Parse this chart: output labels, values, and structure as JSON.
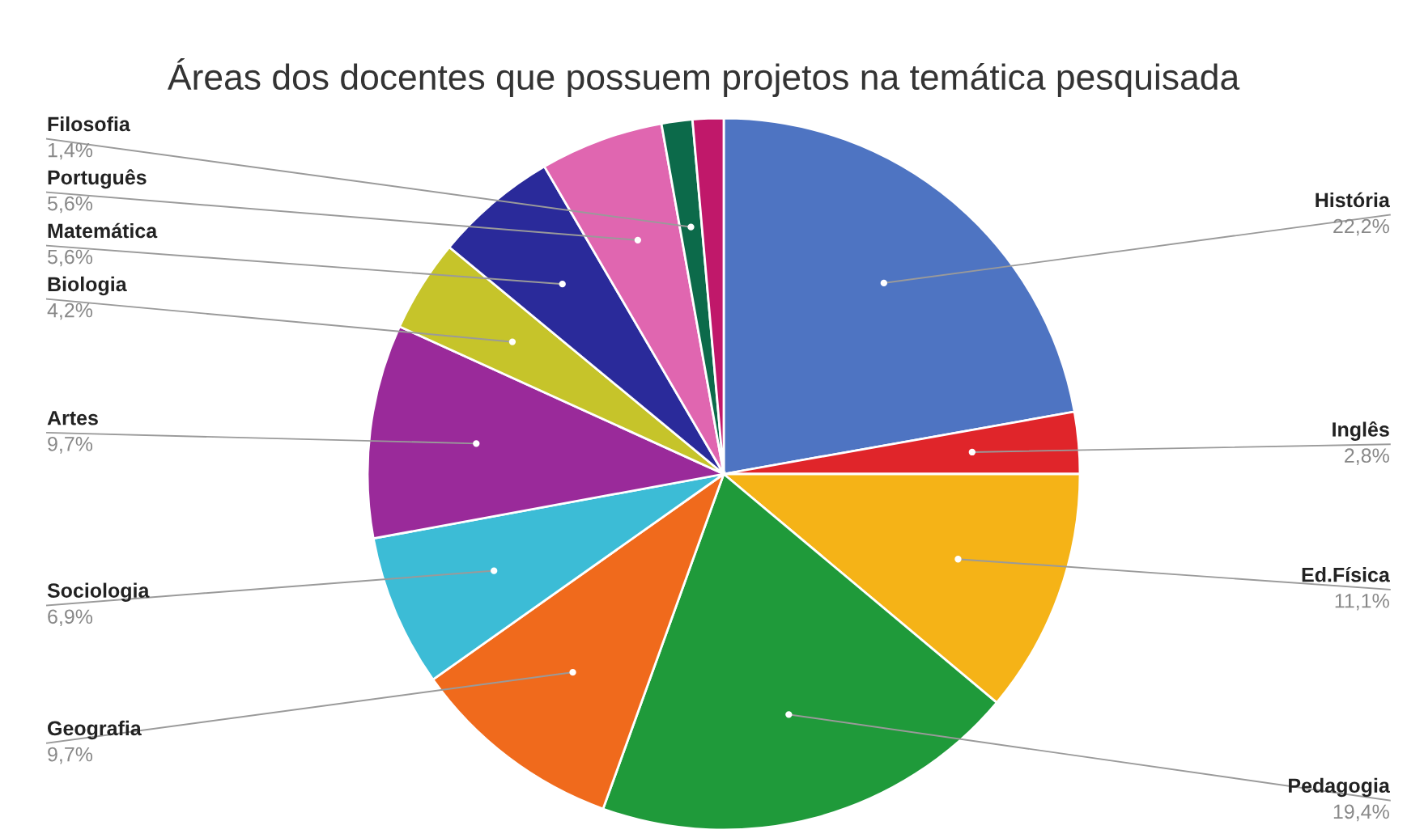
{
  "chart_data": {
    "type": "pie",
    "title": "Áreas dos docentes que possuem projetos na temática pesquisada",
    "categories": [
      "História",
      "Inglês",
      "Ed.Física",
      "Pedagogia",
      "Geografia",
      "Sociologia",
      "Artes",
      "Biologia",
      "Matemática",
      "Português",
      "Filosofia",
      null
    ],
    "values": [
      22.2,
      2.8,
      11.1,
      19.4,
      9.7,
      6.9,
      9.7,
      4.2,
      5.6,
      5.6,
      1.4,
      1.4
    ],
    "value_labels": [
      "22,2%",
      "2,8%",
      "11,1%",
      "19,4%",
      "9,7%",
      "6,9%",
      "9,7%",
      "4,2%",
      "5,6%",
      "5,6%",
      "1,4%",
      null
    ],
    "colors": [
      "#4e74c2",
      "#e0252a",
      "#f5b317",
      "#1f9a3a",
      "#f06a1c",
      "#3cbcd6",
      "#9a2a9a",
      "#c6c42a",
      "#2a2a9a",
      "#e066b0",
      "#0c6a4a",
      "#c0186a"
    ]
  }
}
